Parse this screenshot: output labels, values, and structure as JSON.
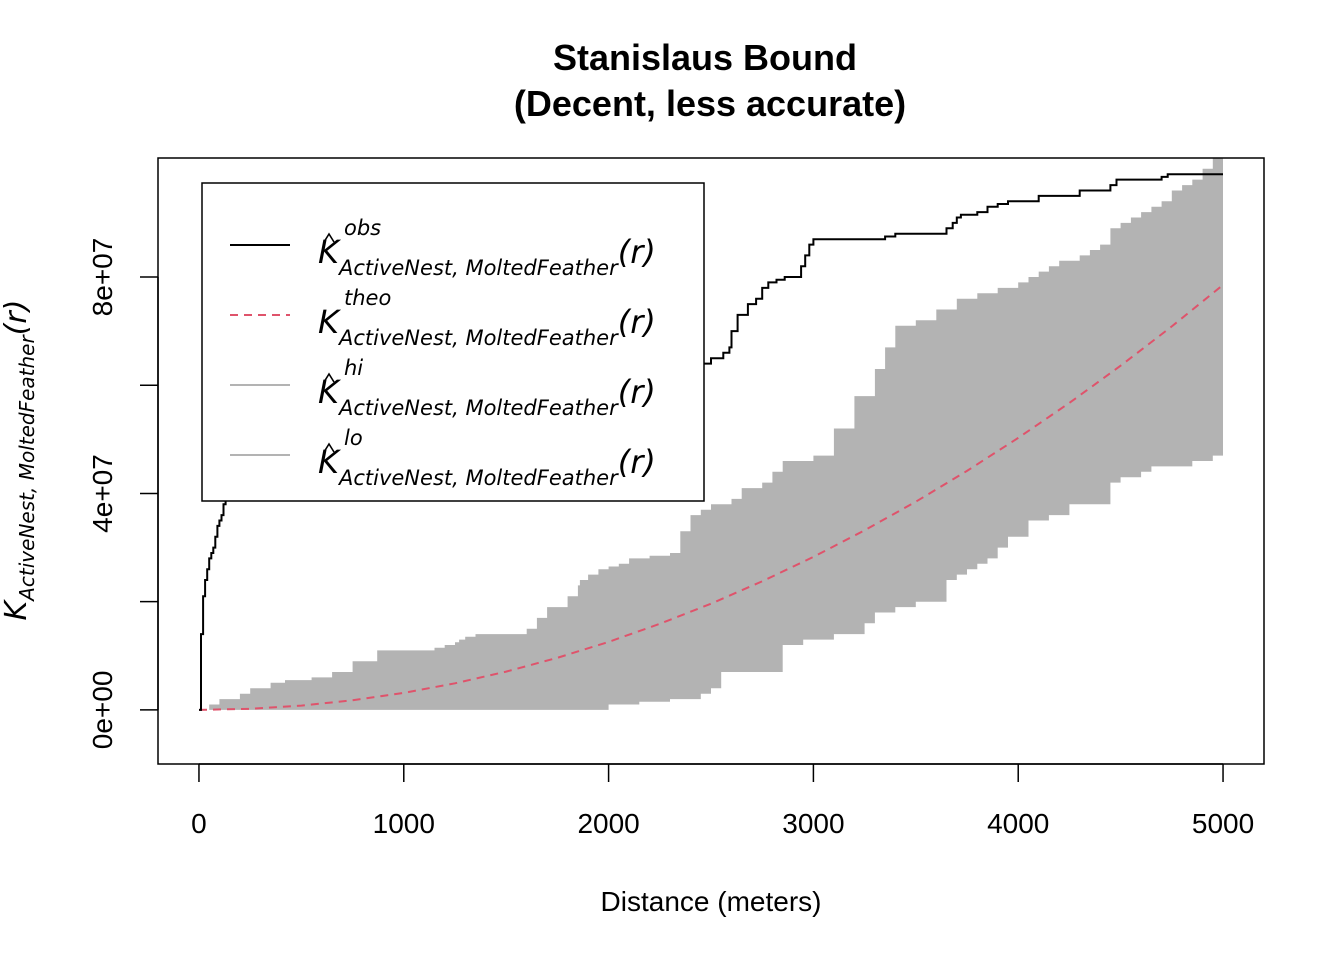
{
  "chart_data": {
    "type": "line",
    "title": "Stanislaus Bound",
    "subtitle": "(Decent, less accurate)",
    "xlabel": "Distance (meters)",
    "ylabel": {
      "base": "K",
      "sub": "ActiveNest, MoltedFeather",
      "arg": "(r)"
    },
    "xlim": [
      -200,
      5200
    ],
    "ylim": [
      -10000000,
      102000000
    ],
    "x_ticks": [
      0,
      1000,
      2000,
      3000,
      4000,
      5000
    ],
    "x_tick_labels": [
      "0",
      "1000",
      "2000",
      "3000",
      "4000",
      "5000"
    ],
    "y_ticks": [
      0,
      20000000,
      40000000,
      60000000,
      80000000
    ],
    "y_tick_labels": [
      "0e+00",
      "",
      "4e+07",
      "",
      "8e+07"
    ],
    "grid": false,
    "legend_position": "top-left",
    "legend": [
      {
        "sup": "obs",
        "hat": true,
        "sub": "ActiveNest, MoltedFeather",
        "arg": "(r)",
        "style": "solid",
        "color": "#000000"
      },
      {
        "sup": "theo",
        "hat": false,
        "sub": "ActiveNest, MoltedFeather",
        "arg": "(r)",
        "style": "dashed",
        "color": "#DF536B"
      },
      {
        "sup": "hi",
        "hat": true,
        "sub": "ActiveNest, MoltedFeather",
        "arg": "(r)",
        "style": "solid",
        "color": "#B3B3B3"
      },
      {
        "sup": "lo",
        "hat": true,
        "sub": "ActiveNest, MoltedFeather",
        "arg": "(r)",
        "style": "solid",
        "color": "#B3B3B3"
      }
    ],
    "series": [
      {
        "key": "obs",
        "color": "#000000",
        "step": true,
        "x": [
          0,
          10,
          20,
          30,
          40,
          50,
          60,
          70,
          80,
          90,
          100,
          110,
          120,
          130,
          150,
          160,
          170,
          190,
          220,
          230,
          260,
          290,
          400,
          420,
          480,
          600,
          620,
          650,
          700,
          1000,
          1200,
          1500,
          1600,
          1950,
          2000,
          2050,
          2100,
          2370,
          2400,
          2450,
          2500,
          2560,
          2590,
          2600,
          2630,
          2680,
          2720,
          2750,
          2780,
          2820,
          2860,
          2940,
          2960,
          2980,
          3000,
          3100,
          3350,
          3400,
          3650,
          3680,
          3700,
          3720,
          3800,
          3850,
          3900,
          3950,
          4000,
          4100,
          4300,
          4450,
          4480,
          4700,
          4730,
          5000
        ],
        "y": [
          0,
          14000000,
          21000000,
          24000000,
          26000000,
          28000000,
          29000000,
          30000000,
          32000000,
          34000000,
          35000000,
          36000000,
          38000000,
          40000000,
          42000000,
          44000000,
          46000000,
          47000000,
          48000000,
          49000000,
          50000000,
          51000000,
          52000000,
          53000000,
          54000000,
          55000000,
          55500000,
          55500000,
          55500000,
          55500000,
          56000000,
          56500000,
          57000000,
          57000000,
          57500000,
          58000000,
          58500000,
          59000000,
          63000000,
          64000000,
          65000000,
          66000000,
          67000000,
          70000000,
          73000000,
          75000000,
          76000000,
          78000000,
          79000000,
          79500000,
          80000000,
          82000000,
          84000000,
          86000000,
          87000000,
          87000000,
          87500000,
          88000000,
          89000000,
          90000000,
          91000000,
          91500000,
          92000000,
          93000000,
          93500000,
          94000000,
          94000000,
          95000000,
          96000000,
          97000000,
          98000000,
          98500000,
          99000000,
          99000000
        ]
      },
      {
        "key": "theo",
        "color": "#DF536B",
        "x": [
          0,
          250,
          500,
          750,
          1000,
          1250,
          1500,
          1750,
          2000,
          2250,
          2500,
          2750,
          3000,
          3250,
          3500,
          3750,
          4000,
          4250,
          4500,
          4750,
          5000
        ],
        "y": [
          0,
          196000,
          785000,
          1767000,
          3142000,
          4909000,
          7069000,
          9621000,
          12566000,
          15904000,
          19635000,
          23758000,
          28274000,
          33183000,
          38485000,
          44179000,
          50265000,
          56745000,
          63617000,
          70882000,
          78540000
        ]
      },
      {
        "key": "hi",
        "color": "#B3B3B3",
        "step": true,
        "x": [
          0,
          50,
          100,
          200,
          250,
          350,
          420,
          550,
          650,
          750,
          870,
          900,
          1000,
          1150,
          1200,
          1250,
          1270,
          1300,
          1350,
          1600,
          1650,
          1700,
          1800,
          1850,
          1860,
          1900,
          1950,
          2000,
          2050,
          2100,
          2200,
          2300,
          2350,
          2400,
          2450,
          2500,
          2600,
          2650,
          2750,
          2800,
          2850,
          3000,
          3100,
          3200,
          3300,
          3350,
          3400,
          3500,
          3600,
          3700,
          3800,
          3900,
          4000,
          4050,
          4100,
          4150,
          4200,
          4300,
          4350,
          4400,
          4450,
          4500,
          4550,
          4600,
          4650,
          4700,
          4750,
          4800,
          4850,
          4900,
          4950,
          5000
        ],
        "y": [
          0,
          1000000,
          2000000,
          3000000,
          4000000,
          5000000,
          5500000,
          6000000,
          7000000,
          9000000,
          11000000,
          11000000,
          11000000,
          11500000,
          12000000,
          12500000,
          13000000,
          13500000,
          14000000,
          15000000,
          17000000,
          19000000,
          21000000,
          23000000,
          24000000,
          25000000,
          26000000,
          26500000,
          27000000,
          28000000,
          28500000,
          29000000,
          33000000,
          36000000,
          37000000,
          38000000,
          39000000,
          41000000,
          42000000,
          44000000,
          46000000,
          47000000,
          52000000,
          58000000,
          63000000,
          67000000,
          71000000,
          72000000,
          74000000,
          76000000,
          77000000,
          78000000,
          79000000,
          80000000,
          81000000,
          82000000,
          83000000,
          84000000,
          85000000,
          86000000,
          89000000,
          90000000,
          91000000,
          92000000,
          93000000,
          94000000,
          96000000,
          97000000,
          98000000,
          100000000,
          102000000,
          102000000
        ]
      },
      {
        "key": "lo",
        "color": "#B3B3B3",
        "step": true,
        "x": [
          0,
          1950,
          2000,
          2150,
          2300,
          2450,
          2500,
          2550,
          2850,
          2950,
          3100,
          3250,
          3300,
          3400,
          3500,
          3650,
          3700,
          3750,
          3800,
          3850,
          3900,
          3950,
          4050,
          4150,
          4250,
          4450,
          4500,
          4600,
          4650,
          4850,
          4950,
          5000
        ],
        "y": [
          0,
          0,
          1000000,
          1500000,
          2000000,
          3000000,
          4000000,
          7000000,
          12000000,
          13000000,
          14000000,
          16000000,
          18000000,
          19000000,
          20000000,
          24000000,
          25000000,
          26000000,
          27000000,
          28000000,
          30000000,
          32000000,
          35000000,
          36000000,
          38000000,
          42000000,
          43000000,
          44000000,
          45000000,
          46000000,
          47000000,
          48000000
        ]
      }
    ]
  }
}
